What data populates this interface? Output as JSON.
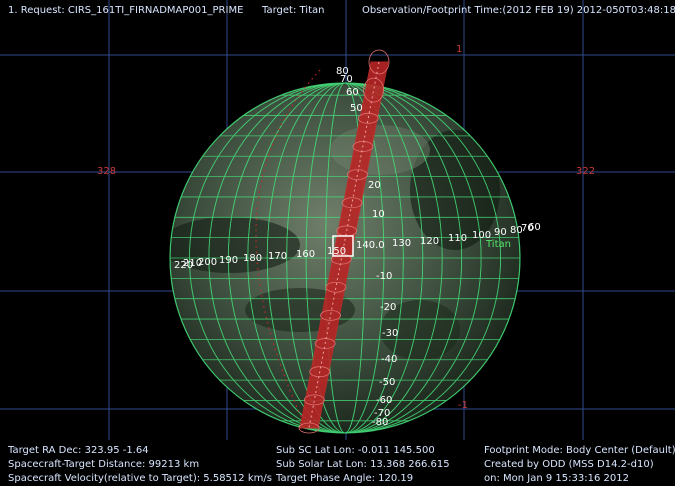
{
  "header": {
    "request": "1. Request: CIRS_161TI_FIRNADMAP001_PRIME",
    "target": "Target: Titan",
    "obs_time": "Observation/Footprint Time:(2012 FEB 19) 2012-050T03:48:18.37"
  },
  "grid_labels": {
    "top": "1",
    "left": "328",
    "right": "322",
    "bottom": "-1"
  },
  "target_label": "Titan",
  "longitude_labels": [
    "220",
    "210",
    "200",
    "190",
    "180",
    "170",
    "160",
    "150",
    "140.0",
    "130",
    "120",
    "110",
    "100",
    "90",
    "80",
    "70",
    "60"
  ],
  "latitude_labels": [
    "80",
    "70",
    "60",
    "50",
    "20",
    "10",
    "-10",
    "-20",
    "-30",
    "-40",
    "-50",
    "-60",
    "-70",
    "-80"
  ],
  "footer": {
    "col1": [
      "Target RA Dec: 323.95  -1.64",
      "Spacecraft-Target Distance:   99213 km",
      "Spacecraft Velocity(relative to Target): 5.58512 km/s"
    ],
    "col2": [
      "Sub SC Lat Lon: -0.011  145.500",
      "Sub Solar Lat Lon: 13.368  266.615",
      "Target Phase Angle: 120.19"
    ],
    "col3": [
      "Footprint Mode: Body Center (Default)",
      "Created by ODD (MSS D14.2-d10)",
      "on: Mon Jan  9 15:33:16 2012"
    ]
  },
  "colors": {
    "grid": "#2f4a8c",
    "lat_lon_grid": "#45e07a",
    "footprint": "#c42a2a",
    "frame_grid_label": "#c83a3a",
    "text": "#d8e6ff"
  }
}
